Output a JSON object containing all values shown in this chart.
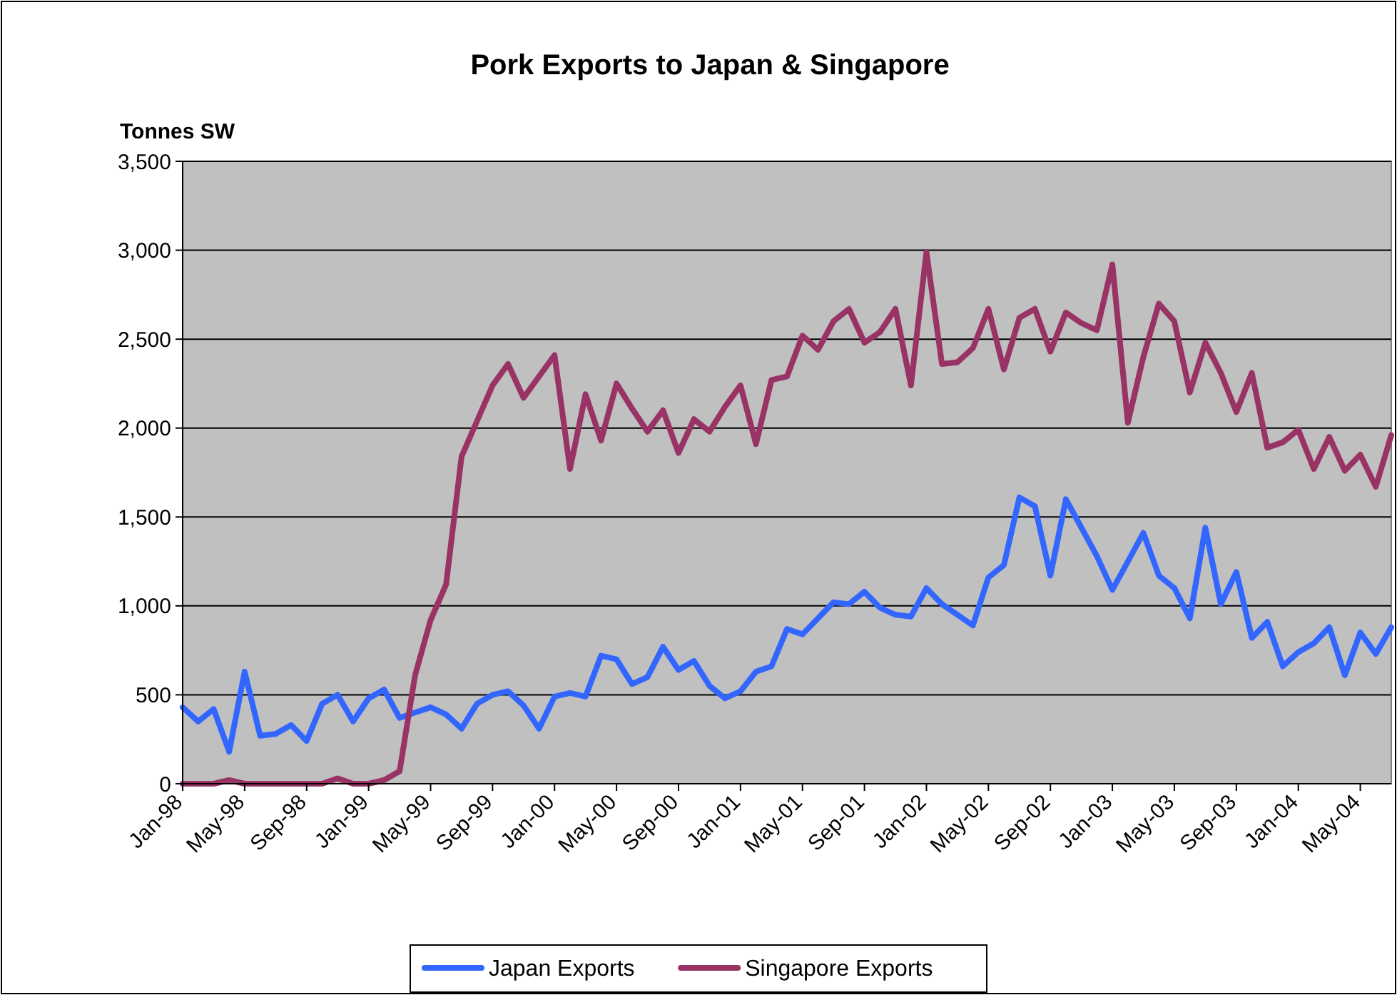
{
  "chart_data": {
    "type": "line",
    "title": "Pork Exports to Japan & Singapore",
    "ylabel": "Tonnes SW",
    "categories": [
      "Jan-98",
      null,
      null,
      null,
      "May-98",
      null,
      null,
      null,
      "Sep-98",
      null,
      null,
      null,
      "Jan-99",
      null,
      null,
      null,
      "May-99",
      null,
      null,
      null,
      "Sep-99",
      null,
      null,
      null,
      "Jan-00",
      null,
      null,
      null,
      "May-00",
      null,
      null,
      null,
      "Sep-00",
      null,
      null,
      null,
      "Jan-01",
      null,
      null,
      null,
      "May-01",
      null,
      null,
      null,
      "Sep-01",
      null,
      null,
      null,
      "Jan-02",
      null,
      null,
      null,
      "May-02",
      null,
      null,
      null,
      "Sep-02",
      null,
      null,
      null,
      "Jan-03",
      null,
      null,
      null,
      "May-03",
      null,
      null,
      null,
      "Sep-03",
      null,
      null,
      null,
      "Jan-04",
      null,
      null,
      null,
      "May-04",
      null,
      null
    ],
    "series": [
      {
        "name": "Japan Exports",
        "color": "#3366ff",
        "values": [
          430,
          350,
          420,
          180,
          630,
          270,
          280,
          330,
          240,
          450,
          500,
          350,
          480,
          530,
          370,
          400,
          430,
          390,
          310,
          450,
          500,
          520,
          440,
          310,
          490,
          510,
          490,
          720,
          700,
          560,
          600,
          770,
          640,
          690,
          550,
          480,
          520,
          630,
          660,
          870,
          840,
          930,
          1020,
          1010,
          1080,
          990,
          950,
          940,
          1100,
          1010,
          950,
          890,
          1160,
          1230,
          1610,
          1560,
          1170,
          1600,
          1440,
          1280,
          1090,
          1250,
          1410,
          1170,
          1100,
          930,
          1440,
          1010,
          1190,
          820,
          910,
          660,
          740,
          790,
          880,
          610,
          850,
          730,
          880
        ]
      },
      {
        "name": "Singapore Exports",
        "color": "#993366",
        "values": [
          0,
          0,
          0,
          20,
          0,
          0,
          0,
          0,
          0,
          0,
          30,
          0,
          0,
          20,
          70,
          610,
          920,
          1120,
          1840,
          2040,
          2240,
          2360,
          2170,
          2290,
          2410,
          1770,
          2190,
          1930,
          2250,
          2110,
          1980,
          2100,
          1860,
          2050,
          1980,
          2120,
          2240,
          1910,
          2270,
          2290,
          2520,
          2440,
          2600,
          2670,
          2480,
          2540,
          2670,
          2240,
          2990,
          2360,
          2370,
          2450,
          2670,
          2330,
          2620,
          2670,
          2430,
          2650,
          2590,
          2550,
          2920,
          2030,
          2400,
          2700,
          2600,
          2200,
          2480,
          2310,
          2090,
          2310,
          1890,
          1920,
          1990,
          1770,
          1950,
          1760,
          1850,
          1670,
          1960
        ]
      }
    ],
    "ylim": [
      0,
      3500
    ],
    "yticks": [
      0,
      500,
      {
        "value": 1000,
        "label": "1,000"
      },
      {
        "value": 1500,
        "label": "1,500"
      },
      {
        "value": 2000,
        "label": "2,000"
      },
      {
        "value": 2500,
        "label": "2,500"
      },
      {
        "value": 3000,
        "label": "3,000"
      },
      {
        "value": 3500,
        "label": "3,500"
      }
    ],
    "grid": "y",
    "legend": "bottom",
    "marker": "none",
    "line_style": "solid"
  }
}
